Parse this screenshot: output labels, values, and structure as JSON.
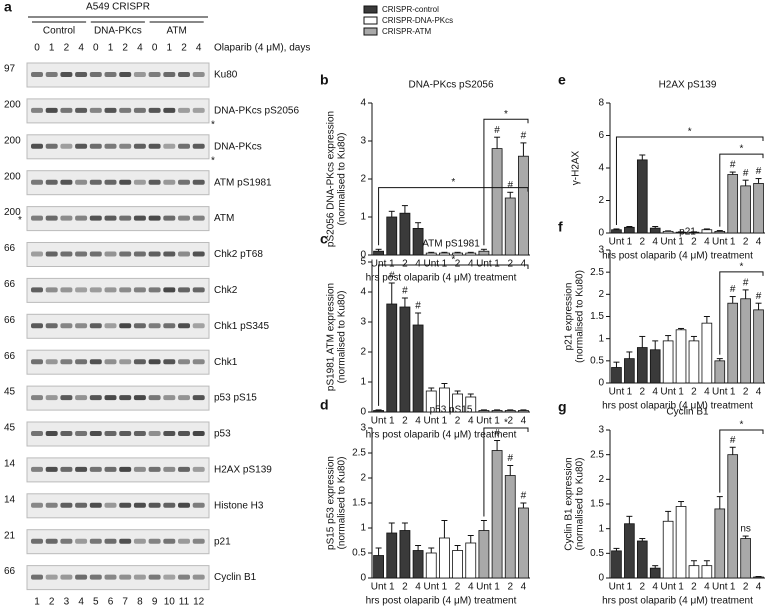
{
  "panel_a": {
    "label": "a",
    "title": "A549 CRISPR",
    "groups": [
      "Control",
      "DNA-PKcs",
      "ATM"
    ],
    "days": [
      0,
      1,
      2,
      4
    ],
    "treatment": "Olaparib (4 μM), days",
    "blots": [
      {
        "name": "Ku80",
        "marker": "97"
      },
      {
        "name": "DNA-PKcs pS2056",
        "marker": "200",
        "note": "*"
      },
      {
        "name": "DNA-PKcs",
        "marker": "200",
        "note": "*"
      },
      {
        "name": "ATM pS1981",
        "marker": "200"
      },
      {
        "name": "ATM",
        "marker": "200",
        "note_left": "*"
      },
      {
        "name": "Chk2 pT68",
        "marker": "66"
      },
      {
        "name": "Chk2",
        "marker": "66"
      },
      {
        "name": "Chk1 pS345",
        "marker": "66"
      },
      {
        "name": "Chk1",
        "marker": "66"
      },
      {
        "name": "p53 pS15",
        "marker": "45"
      },
      {
        "name": "p53",
        "marker": "45"
      },
      {
        "name": "H2AX pS139",
        "marker": "14"
      },
      {
        "name": "Histone H3",
        "marker": "14"
      },
      {
        "name": "p21",
        "marker": "21"
      },
      {
        "name": "Cyclin B1",
        "marker": "66"
      }
    ],
    "lanes": [
      1,
      2,
      3,
      4,
      5,
      6,
      7,
      8,
      9,
      10,
      11,
      12
    ]
  },
  "legend": [
    {
      "name": "CRISPR-control",
      "color": "#3a3a3a"
    },
    {
      "name": "CRISPR-DNA-PKcs",
      "color": "#ffffff"
    },
    {
      "name": "CRISPR-ATM",
      "color": "#a9a9a9"
    }
  ],
  "chart_data": [
    {
      "type": "bar",
      "label": "b",
      "title": "DNA-PKcs pS2056",
      "ylabel": [
        "pS2056 DNA-PKcs expression",
        "(normalised to Ku80)"
      ],
      "xlabel": "hrs post olaparib (4 μM) treatment",
      "categories": [
        "Unt",
        "1",
        "2",
        "4"
      ],
      "ylim": [
        0,
        4
      ],
      "yticks": [
        0,
        1,
        2,
        3,
        4
      ],
      "series": [
        {
          "values": [
            0.1,
            1.0,
            1.1,
            0.7
          ],
          "errors": [
            0.05,
            0.15,
            0.2,
            0.15
          ],
          "marks": [
            null,
            null,
            null,
            null
          ]
        },
        {
          "values": [
            0.05,
            0.05,
            0.05,
            0.05
          ],
          "errors": [
            0.02,
            0.02,
            0.02,
            0.02
          ],
          "marks": [
            null,
            null,
            null,
            null
          ]
        },
        {
          "values": [
            0.1,
            2.8,
            1.5,
            2.6
          ],
          "errors": [
            0.05,
            0.3,
            0.15,
            0.35
          ],
          "marks": [
            null,
            "#",
            "#",
            "#"
          ]
        }
      ],
      "brackets": [
        {
          "label": "*",
          "series": 0
        },
        {
          "label": "*",
          "series": 2
        }
      ]
    },
    {
      "type": "bar",
      "label": "c",
      "title": "ATM pS1981",
      "ylabel": [
        "pS1981 ATM expression",
        "(normalised to Ku80)"
      ],
      "xlabel": "hrs post olaparib (4 μM) treatment",
      "categories": [
        "Unt",
        "1",
        "2",
        "4"
      ],
      "ylim": [
        0,
        5
      ],
      "yticks": [
        0,
        1,
        2,
        3,
        4,
        5
      ],
      "series": [
        {
          "values": [
            0.05,
            3.6,
            3.5,
            2.9
          ],
          "errors": [
            0.02,
            0.7,
            0.3,
            0.4
          ],
          "marks": [
            null,
            "#",
            "#",
            "#"
          ]
        },
        {
          "values": [
            0.7,
            0.8,
            0.6,
            0.5
          ],
          "errors": [
            0.1,
            0.15,
            0.1,
            0.1
          ],
          "marks": [
            null,
            null,
            null,
            null
          ]
        },
        {
          "values": [
            0.05,
            0.05,
            0.05,
            0.05
          ],
          "errors": [
            0.02,
            0.02,
            0.02,
            0.02
          ],
          "marks": [
            null,
            null,
            null,
            null
          ]
        }
      ],
      "brackets": [
        {
          "label": "*",
          "series": 0
        }
      ]
    },
    {
      "type": "bar",
      "label": "d",
      "title": "p53 pS15",
      "ylabel": [
        "pS15 p53 expression",
        "(normalised to Ku80)"
      ],
      "xlabel": "hrs post olaparib (4 μM) treatment",
      "categories": [
        "Unt",
        "1",
        "2",
        "4"
      ],
      "ylim": [
        0,
        3
      ],
      "yticks": [
        0,
        0.5,
        1,
        1.5,
        2,
        2.5,
        3
      ],
      "series": [
        {
          "values": [
            0.45,
            0.9,
            0.95,
            0.55
          ],
          "errors": [
            0.15,
            0.2,
            0.15,
            0.1
          ],
          "marks": [
            null,
            null,
            null,
            null
          ]
        },
        {
          "values": [
            0.5,
            0.8,
            0.55,
            0.7
          ],
          "errors": [
            0.1,
            0.35,
            0.1,
            0.15
          ],
          "marks": [
            null,
            null,
            null,
            null
          ]
        },
        {
          "values": [
            0.95,
            2.55,
            2.05,
            1.4
          ],
          "errors": [
            0.2,
            0.2,
            0.2,
            0.1
          ],
          "marks": [
            null,
            "#",
            "#",
            "#"
          ]
        }
      ],
      "brackets": [
        {
          "label": "*",
          "series": 2
        }
      ]
    },
    {
      "type": "bar",
      "label": "e",
      "title": "H2AX pS139",
      "ylabel": [
        "γ-H2AX"
      ],
      "xlabel": "hrs post olaparib (4 μM) treatment",
      "categories": [
        "Unt",
        "1",
        "2",
        "4"
      ],
      "ylim": [
        0,
        8
      ],
      "yticks": [
        0,
        2,
        4,
        6,
        8
      ],
      "series": [
        {
          "values": [
            0.2,
            0.35,
            4.5,
            0.3
          ],
          "errors": [
            0.05,
            0.05,
            0.3,
            0.1
          ],
          "marks": [
            null,
            null,
            null,
            null
          ]
        },
        {
          "values": [
            0.1,
            0.05,
            0.05,
            0.2
          ],
          "errors": [
            0.03,
            0.02,
            0.02,
            0.05
          ],
          "marks": [
            null,
            null,
            null,
            null
          ]
        },
        {
          "values": [
            0.1,
            3.6,
            2.9,
            3.05
          ],
          "errors": [
            0.05,
            0.15,
            0.35,
            0.3
          ],
          "marks": [
            null,
            "#",
            "#",
            "#"
          ]
        }
      ],
      "brackets": [
        {
          "label": "*",
          "series": 0
        },
        {
          "label": "*",
          "series": 2
        }
      ]
    },
    {
      "type": "bar",
      "label": "f",
      "title": "p21",
      "ylabel": [
        "p21 expression",
        "(normalised to Ku80)"
      ],
      "xlabel": "hrs post olaparib (4 μM) treatment",
      "categories": [
        "Unt",
        "1",
        "2",
        "4"
      ],
      "ylim": [
        0,
        3
      ],
      "yticks": [
        0,
        0.5,
        1,
        1.5,
        2,
        2.5,
        3
      ],
      "series": [
        {
          "values": [
            0.35,
            0.55,
            0.8,
            0.75
          ],
          "errors": [
            0.12,
            0.15,
            0.25,
            0.2
          ],
          "marks": [
            null,
            null,
            null,
            null
          ]
        },
        {
          "values": [
            0.95,
            1.2,
            0.95,
            1.35
          ],
          "errors": [
            0.12,
            0.03,
            0.1,
            0.15
          ],
          "marks": [
            null,
            null,
            null,
            null
          ]
        },
        {
          "values": [
            0.5,
            1.8,
            1.9,
            1.65
          ],
          "errors": [
            0.05,
            0.15,
            0.2,
            0.15
          ],
          "marks": [
            null,
            "#",
            "#",
            "#"
          ]
        }
      ],
      "brackets": [
        {
          "label": "*",
          "series": 2
        }
      ]
    },
    {
      "type": "bar",
      "label": "g",
      "title": "Cyclin B1",
      "ylabel": [
        "Cyclin B1 expression",
        "(normalised to Ku80)"
      ],
      "xlabel": "hrs post olaparib (4 μM) treatment",
      "categories": [
        "Unt",
        "1",
        "2",
        "4"
      ],
      "ylim": [
        0,
        3
      ],
      "yticks": [
        0,
        0.5,
        1,
        1.5,
        2,
        2.5,
        3
      ],
      "series": [
        {
          "values": [
            0.55,
            1.1,
            0.75,
            0.2
          ],
          "errors": [
            0.05,
            0.15,
            0.05,
            0.05
          ],
          "marks": [
            null,
            null,
            null,
            null
          ]
        },
        {
          "values": [
            1.15,
            1.45,
            0.25,
            0.25
          ],
          "errors": [
            0.2,
            0.1,
            0.1,
            0.1
          ],
          "marks": [
            null,
            null,
            null,
            null
          ]
        },
        {
          "values": [
            1.4,
            2.5,
            0.8,
            0.02
          ],
          "errors": [
            0.25,
            0.15,
            0.05,
            0.01
          ],
          "marks": [
            null,
            "#",
            "ns",
            null
          ]
        }
      ],
      "brackets": [
        {
          "label": "*",
          "series": 2
        }
      ]
    }
  ]
}
